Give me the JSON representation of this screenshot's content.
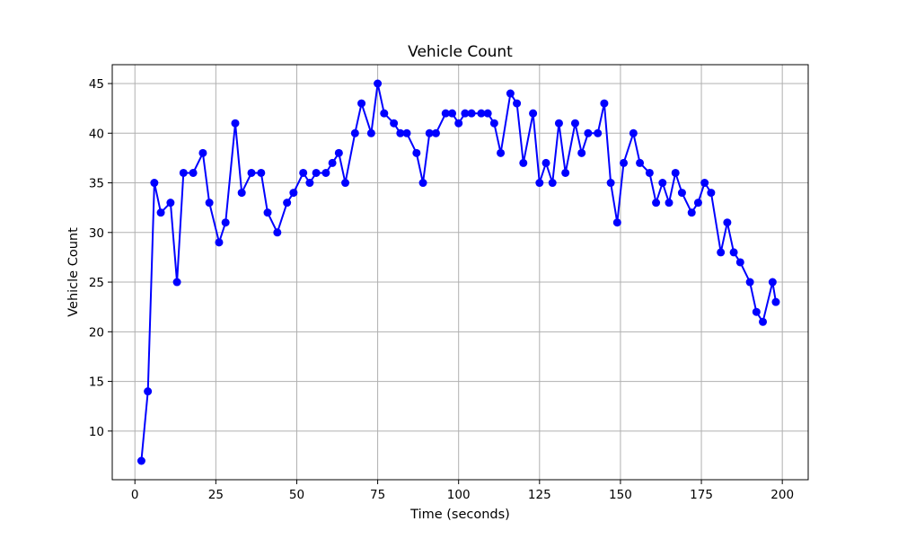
{
  "chart_data": {
    "type": "line",
    "title": "Vehicle Count",
    "xlabel": "Time (seconds)",
    "ylabel": "Vehicle Count",
    "xlim": [
      -7,
      208
    ],
    "ylim": [
      5.1,
      46.9
    ],
    "xticks": [
      0,
      25,
      50,
      75,
      100,
      125,
      150,
      175,
      200
    ],
    "yticks": [
      10,
      15,
      20,
      25,
      30,
      35,
      40,
      45
    ],
    "grid": true,
    "legend": "none",
    "series": [
      {
        "color": "#0000ff",
        "marker": "circle",
        "x": [
          2,
          4,
          6,
          8,
          11,
          13,
          15,
          18,
          21,
          23,
          26,
          28,
          31,
          33,
          36,
          39,
          41,
          44,
          47,
          49,
          52,
          54,
          56,
          59,
          61,
          63,
          65,
          68,
          70,
          73,
          75,
          77,
          80,
          82,
          84,
          87,
          89,
          91,
          93,
          96,
          98,
          100,
          102,
          104,
          107,
          109,
          111,
          113,
          116,
          118,
          120,
          123,
          125,
          127,
          129,
          131,
          133,
          136,
          138,
          140,
          143,
          145,
          147,
          149,
          151,
          154,
          156,
          159,
          161,
          163,
          165,
          167,
          169,
          172,
          174,
          176,
          178,
          181,
          183,
          185,
          187,
          190,
          192,
          194,
          197,
          198
        ],
        "y": [
          7,
          14,
          35,
          32,
          33,
          25,
          36,
          36,
          38,
          33,
          29,
          31,
          41,
          34,
          36,
          36,
          32,
          30,
          33,
          34,
          36,
          35,
          36,
          36,
          37,
          38,
          35,
          40,
          43,
          40,
          45,
          42,
          41,
          40,
          40,
          38,
          35,
          40,
          40,
          42,
          42,
          41,
          42,
          42,
          42,
          42,
          41,
          38,
          44,
          43,
          37,
          42,
          35,
          37,
          35,
          41,
          36,
          41,
          38,
          40,
          40,
          43,
          35,
          31,
          37,
          40,
          37,
          36,
          33,
          35,
          33,
          36,
          34,
          32,
          33,
          35,
          34,
          28,
          31,
          28,
          27,
          25,
          22,
          21,
          25,
          23
        ]
      }
    ]
  }
}
